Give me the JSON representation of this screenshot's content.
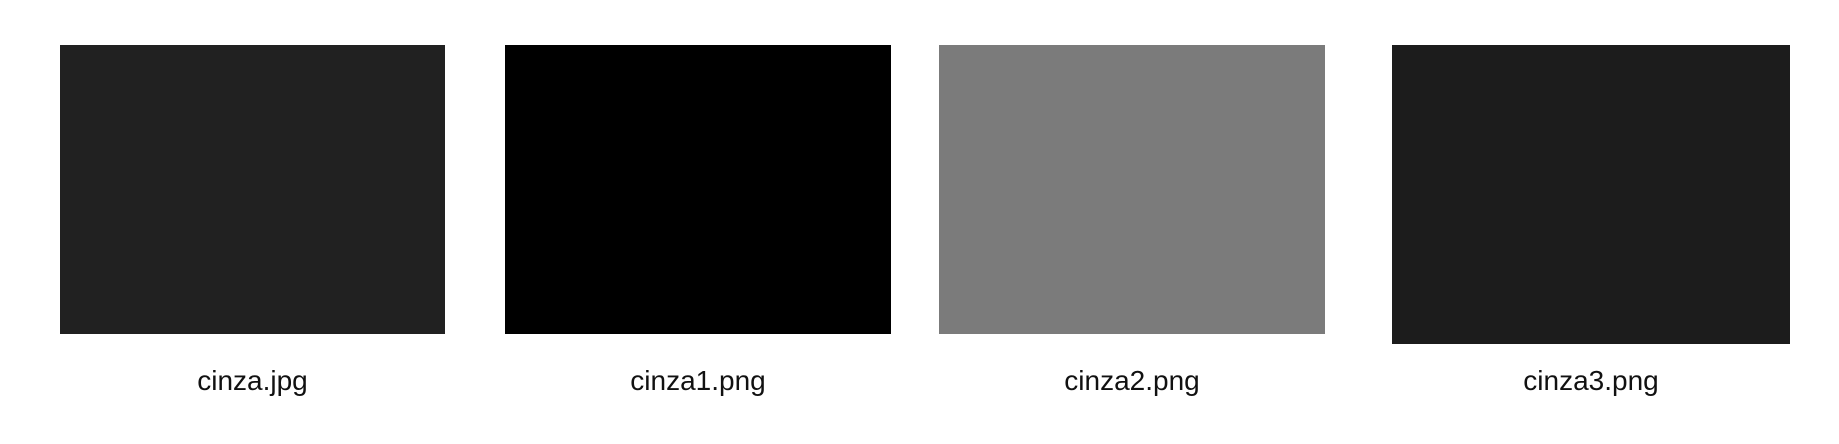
{
  "files": [
    {
      "name": "cinza.jpg",
      "thumb_color": "#212121"
    },
    {
      "name": "cinza1.png",
      "thumb_color": "#000000"
    },
    {
      "name": "cinza2.png",
      "thumb_color": "#7b7b7b"
    },
    {
      "name": "cinza3.png",
      "thumb_color": "#1c1c1c"
    }
  ]
}
